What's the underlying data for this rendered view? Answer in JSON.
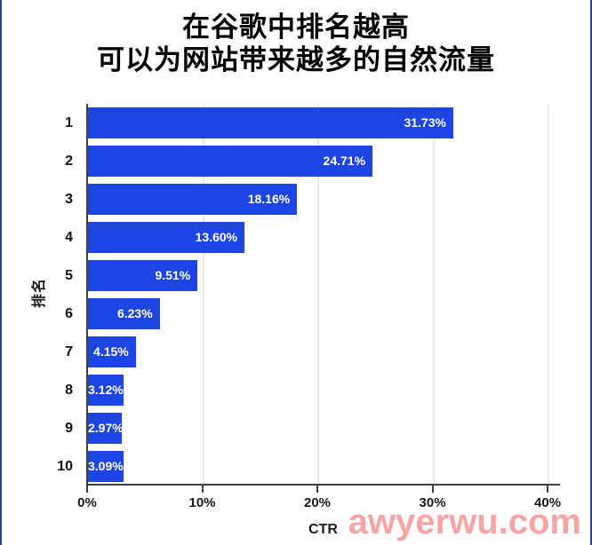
{
  "title": {
    "line1": "在谷歌中排名越高",
    "line2": "可以为网站带来越多的自然流量"
  },
  "chart_data": {
    "type": "bar",
    "orientation": "horizontal",
    "title": "在谷歌中排名越高 可以为网站带来越多的自然流量",
    "categories": [
      "1",
      "2",
      "3",
      "4",
      "5",
      "6",
      "7",
      "8",
      "9",
      "10"
    ],
    "values": [
      31.73,
      24.71,
      18.16,
      13.6,
      9.51,
      6.23,
      4.15,
      3.12,
      2.97,
      3.09
    ],
    "value_labels": [
      "31.73%",
      "24.71%",
      "18.16%",
      "13.60%",
      "9.51%",
      "6.23%",
      "4.15%",
      "3.12%",
      "2.97%",
      "3.09%"
    ],
    "xlabel": "CTR",
    "ylabel": "排名",
    "xlim": [
      0,
      41
    ],
    "x_tick_values": [
      0,
      10,
      20,
      30,
      40
    ],
    "x_tick_labels": [
      "0%",
      "10%",
      "20%",
      "30%",
      "40%"
    ],
    "grid": "vertical",
    "legend": "none",
    "bar_color": "#1c45e3",
    "bar_label_color": "#ffffff"
  },
  "watermark": {
    "text": "awyerwu.com",
    "color": "#f5a5a3"
  },
  "frame": {
    "border_color": "#2e4680"
  }
}
